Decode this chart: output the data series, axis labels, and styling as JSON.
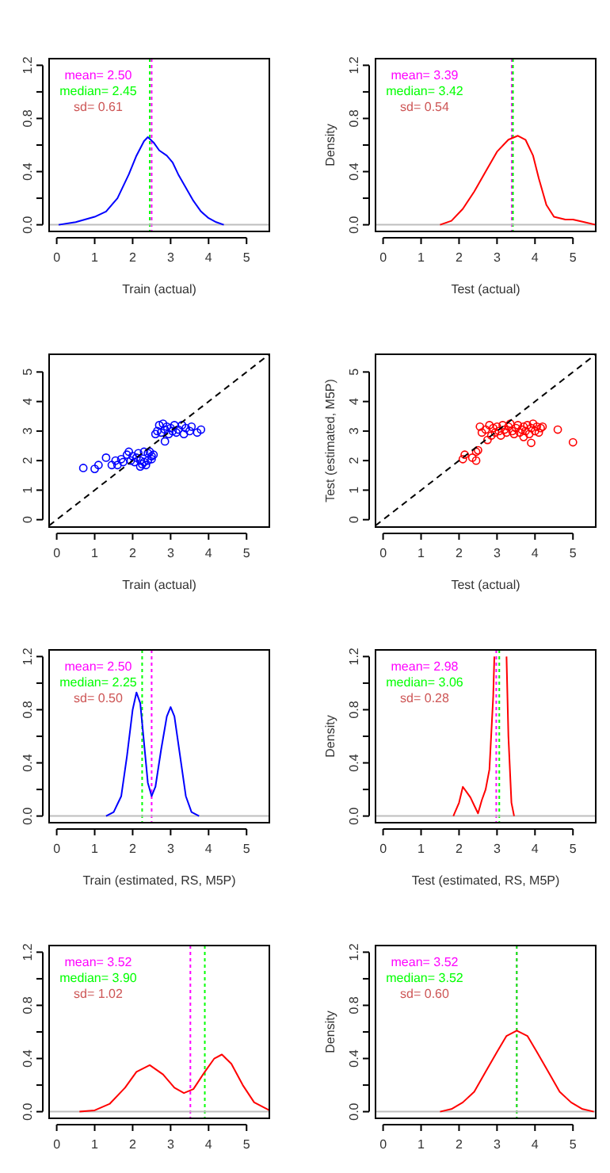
{
  "chart_data": [
    {
      "type": "line",
      "xlabel": "Train (actual)",
      "xlim": [
        -0.2,
        5.6
      ],
      "ylim": [
        -0.05,
        1.25
      ],
      "xticks": [
        0,
        1,
        2,
        3,
        4,
        5
      ],
      "yticks": [
        {
          "value": 0,
          "label": "0.0"
        },
        {
          "value": 0.2,
          "label": null
        },
        0.4,
        {
          "value": 0.6,
          "label": null
        },
        0.8,
        {
          "value": 1.0,
          "label": null
        },
        1.2
      ],
      "annotations": [
        "mean= 2.50",
        "median= 2.45",
        "sd= 0.61"
      ],
      "ref_lines": [
        {
          "axis": "x",
          "value": 2.5,
          "color": "#ff00ff",
          "line_style": "dotted"
        },
        {
          "axis": "x",
          "value": 2.45,
          "color": "#00ff00",
          "line_style": "dotted"
        },
        {
          "axis": "y",
          "value": 0,
          "color": "#bebebe"
        }
      ],
      "series": [
        {
          "color": "#0000ff",
          "x": [
            0.05,
            0.5,
            1,
            1.3,
            1.6,
            1.9,
            2.1,
            2.3,
            2.4,
            2.55,
            2.7,
            2.9,
            3.05,
            3.2,
            3.4,
            3.6,
            3.8,
            4.0,
            4.2,
            4.4
          ],
          "values": [
            0,
            0.02,
            0.06,
            0.1,
            0.2,
            0.38,
            0.52,
            0.63,
            0.66,
            0.62,
            0.56,
            0.52,
            0.47,
            0.38,
            0.28,
            0.18,
            0.1,
            0.05,
            0.02,
            0
          ]
        }
      ]
    },
    {
      "type": "line",
      "xlabel": "Test (actual)",
      "ylabel": "Density",
      "xlim": [
        -0.2,
        5.6
      ],
      "ylim": [
        -0.05,
        1.25
      ],
      "xticks": [
        0,
        1,
        2,
        3,
        4,
        5
      ],
      "yticks": [
        {
          "value": 0,
          "label": "0.0"
        },
        {
          "value": 0.2,
          "label": null
        },
        0.4,
        {
          "value": 0.6,
          "label": null
        },
        0.8,
        {
          "value": 1.0,
          "label": null
        },
        1.2
      ],
      "annotations": [
        "mean= 3.39",
        "median= 3.42",
        "sd= 0.54"
      ],
      "ref_lines": [
        {
          "axis": "x",
          "value": 3.39,
          "color": "#ff00ff",
          "line_style": "dotted"
        },
        {
          "axis": "x",
          "value": 3.42,
          "color": "#00ff00",
          "line_style": "dotted"
        },
        {
          "axis": "y",
          "value": 0,
          "color": "#bebebe"
        }
      ],
      "series": [
        {
          "color": "#ff0000",
          "x": [
            1.5,
            1.8,
            2.1,
            2.4,
            2.7,
            3.0,
            3.3,
            3.55,
            3.75,
            3.95,
            4.1,
            4.3,
            4.5,
            4.8,
            5.0,
            5.3,
            5.6
          ],
          "values": [
            0,
            0.03,
            0.12,
            0.25,
            0.4,
            0.55,
            0.64,
            0.67,
            0.64,
            0.52,
            0.35,
            0.15,
            0.06,
            0.04,
            0.04,
            0.02,
            0
          ]
        }
      ]
    },
    {
      "type": "scatter",
      "xlabel": "Train (actual)",
      "xlim": [
        -0.2,
        5.6
      ],
      "ylim": [
        -0.25,
        5.6
      ],
      "xticks": [
        0,
        1,
        2,
        3,
        4,
        5
      ],
      "yticks": [
        0,
        1,
        2,
        3,
        4,
        5
      ],
      "series": [
        {
          "color": "#0000ff",
          "marker": "circle",
          "x": [
            0.7,
            1.0,
            1.1,
            1.3,
            1.45,
            1.55,
            1.6,
            1.7,
            1.75,
            1.85,
            1.9,
            1.95,
            2.0,
            2.05,
            2.1,
            2.15,
            2.2,
            2.2,
            2.25,
            2.3,
            2.3,
            2.35,
            2.4,
            2.4,
            2.45,
            2.5,
            2.5,
            2.55,
            2.6,
            2.65,
            2.7,
            2.75,
            2.8,
            2.85,
            2.85,
            2.9,
            2.95,
            3.0,
            3.05,
            3.1,
            3.15,
            3.2,
            3.3,
            3.35,
            3.4,
            3.5,
            3.55,
            3.7,
            3.8
          ],
          "values": [
            1.75,
            1.72,
            1.85,
            2.1,
            1.85,
            2.0,
            1.85,
            2.05,
            1.95,
            2.2,
            2.3,
            2.0,
            2.15,
            1.95,
            2.1,
            2.25,
            1.8,
            2.0,
            1.88,
            2.3,
            1.95,
            1.85,
            2.25,
            2.0,
            2.3,
            2.15,
            2.05,
            2.2,
            2.9,
            3.0,
            3.2,
            2.95,
            3.25,
            2.65,
            3.05,
            3.15,
            2.9,
            3.1,
            3.0,
            3.2,
            2.95,
            3.05,
            3.2,
            2.9,
            3.1,
            3.0,
            3.15,
            2.95,
            3.05
          ]
        },
        {
          "type": "line",
          "color": "#000000",
          "line_style": "dashed",
          "x": [
            -0.2,
            5.6
          ],
          "values": [
            -0.2,
            5.6
          ]
        }
      ]
    },
    {
      "type": "scatter",
      "xlabel": "Test (actual)",
      "ylabel": "Test (estimated, M5P)",
      "xlim": [
        -0.2,
        5.6
      ],
      "ylim": [
        -0.25,
        5.6
      ],
      "xticks": [
        0,
        1,
        2,
        3,
        4,
        5
      ],
      "yticks": [
        0,
        1,
        2,
        3,
        4,
        5
      ],
      "series": [
        {
          "color": "#ff0000",
          "marker": "circle",
          "x": [
            2.1,
            2.15,
            2.35,
            2.45,
            2.45,
            2.5,
            2.55,
            2.6,
            2.7,
            2.75,
            2.8,
            2.85,
            2.9,
            2.95,
            3.0,
            3.05,
            3.1,
            3.15,
            3.2,
            3.25,
            3.3,
            3.35,
            3.4,
            3.45,
            3.5,
            3.55,
            3.6,
            3.65,
            3.7,
            3.7,
            3.75,
            3.8,
            3.85,
            3.9,
            3.9,
            3.95,
            4.0,
            4.05,
            4.1,
            4.15,
            4.2,
            4.6,
            5.0
          ],
          "values": [
            2.05,
            2.2,
            2.1,
            2.0,
            2.3,
            2.35,
            3.15,
            2.95,
            3.05,
            2.7,
            3.2,
            2.85,
            3.1,
            2.95,
            3.15,
            3.0,
            2.85,
            3.2,
            3.05,
            2.95,
            3.15,
            3.25,
            3.0,
            2.9,
            3.1,
            3.2,
            2.95,
            3.05,
            3.15,
            2.8,
            3.0,
            3.2,
            2.9,
            3.1,
            2.6,
            3.25,
            3.0,
            3.15,
            2.95,
            3.1,
            3.15,
            3.05,
            2.62
          ]
        },
        {
          "type": "line",
          "color": "#000000",
          "line_style": "dashed",
          "x": [
            -0.2,
            5.6
          ],
          "values": [
            -0.2,
            5.6
          ]
        }
      ]
    },
    {
      "type": "line",
      "xlabel": "Train (estimated, RS, M5P)",
      "xlim": [
        -0.2,
        5.6
      ],
      "ylim": [
        -0.05,
        1.25
      ],
      "xticks": [
        0,
        1,
        2,
        3,
        4,
        5
      ],
      "yticks": [
        {
          "value": 0,
          "label": "0.0"
        },
        {
          "value": 0.2,
          "label": null
        },
        0.4,
        {
          "value": 0.6,
          "label": null
        },
        0.8,
        {
          "value": 1.0,
          "label": null
        },
        1.2
      ],
      "annotations": [
        "mean= 2.50",
        "median= 2.25",
        "sd= 0.50"
      ],
      "ref_lines": [
        {
          "axis": "x",
          "value": 2.5,
          "color": "#ff00ff",
          "line_style": "dotted"
        },
        {
          "axis": "x",
          "value": 2.25,
          "color": "#00ff00",
          "line_style": "dotted"
        },
        {
          "axis": "y",
          "value": 0,
          "color": "#bebebe"
        }
      ],
      "series": [
        {
          "color": "#0000ff",
          "x": [
            1.3,
            1.5,
            1.7,
            1.85,
            2.0,
            2.1,
            2.2,
            2.3,
            2.4,
            2.5,
            2.6,
            2.75,
            2.9,
            3.0,
            3.1,
            3.25,
            3.4,
            3.55,
            3.75
          ],
          "values": [
            0,
            0.03,
            0.15,
            0.45,
            0.8,
            0.93,
            0.85,
            0.55,
            0.25,
            0.15,
            0.22,
            0.5,
            0.75,
            0.82,
            0.75,
            0.45,
            0.15,
            0.03,
            0
          ]
        }
      ]
    },
    {
      "type": "line",
      "xlabel": "Test (estimated, RS, M5P)",
      "ylabel": "Density",
      "xlim": [
        -0.2,
        5.6
      ],
      "ylim": [
        -0.05,
        1.25
      ],
      "xticks": [
        0,
        1,
        2,
        3,
        4,
        5
      ],
      "yticks": [
        {
          "value": 0,
          "label": "0.0"
        },
        {
          "value": 0.2,
          "label": null
        },
        0.4,
        {
          "value": 0.6,
          "label": null
        },
        0.8,
        {
          "value": 1.0,
          "label": null
        },
        1.2
      ],
      "annotations": [
        "mean= 2.98",
        "median= 3.06",
        "sd= 0.28"
      ],
      "ref_lines": [
        {
          "axis": "x",
          "value": 2.98,
          "color": "#ff00ff",
          "line_style": "dotted"
        },
        {
          "axis": "x",
          "value": 3.06,
          "color": "#00ff00",
          "line_style": "dotted"
        },
        {
          "axis": "y",
          "value": 0,
          "color": "#bebebe"
        }
      ],
      "series": [
        {
          "color": "#ff0000",
          "x": [
            1.85,
            2.0,
            2.1,
            2.2,
            2.3,
            2.4,
            2.5,
            2.6,
            2.7,
            2.8,
            2.9,
            2.93,
            3.1,
            3.25,
            3.3,
            3.38,
            3.45
          ],
          "values": [
            0,
            0.1,
            0.22,
            0.18,
            0.14,
            0.08,
            0.02,
            0.12,
            0.2,
            0.35,
            0.9,
            1.2,
            null,
            1.2,
            0.6,
            0.1,
            0
          ]
        }
      ]
    },
    {
      "type": "line",
      "xlim": [
        -0.2,
        5.6
      ],
      "ylim": [
        -0.05,
        1.25
      ],
      "xticks": [
        0,
        1,
        2,
        3,
        4,
        5
      ],
      "yticks": [
        {
          "value": 0,
          "label": "0.0"
        },
        {
          "value": 0.2,
          "label": null
        },
        0.4,
        {
          "value": 0.6,
          "label": null
        },
        0.8,
        {
          "value": 1.0,
          "label": null
        },
        1.2
      ],
      "annotations": [
        "mean= 3.52",
        "median= 3.90",
        "sd= 1.02"
      ],
      "ref_lines": [
        {
          "axis": "x",
          "value": 3.52,
          "color": "#ff00ff",
          "line_style": "dotted"
        },
        {
          "axis": "x",
          "value": 3.9,
          "color": "#00ff00",
          "line_style": "dotted"
        },
        {
          "axis": "y",
          "value": 0,
          "color": "#bebebe"
        }
      ],
      "series": [
        {
          "color": "#ff0000",
          "x": [
            0.6,
            1.0,
            1.4,
            1.8,
            2.1,
            2.45,
            2.8,
            3.1,
            3.35,
            3.6,
            3.9,
            4.15,
            4.35,
            4.6,
            4.9,
            5.2,
            5.6
          ],
          "values": [
            0,
            0.01,
            0.06,
            0.18,
            0.3,
            0.35,
            0.28,
            0.18,
            0.14,
            0.17,
            0.3,
            0.4,
            0.43,
            0.36,
            0.2,
            0.07,
            0.01
          ]
        }
      ]
    },
    {
      "type": "line",
      "ylabel": "Density",
      "xlim": [
        -0.2,
        5.6
      ],
      "ylim": [
        -0.05,
        1.25
      ],
      "xticks": [
        0,
        1,
        2,
        3,
        4,
        5
      ],
      "yticks": [
        {
          "value": 0,
          "label": "0.0"
        },
        {
          "value": 0.2,
          "label": null
        },
        0.4,
        {
          "value": 0.6,
          "label": null
        },
        0.8,
        {
          "value": 1.0,
          "label": null
        },
        1.2
      ],
      "annotations": [
        "mean= 3.52",
        "median= 3.52",
        "sd= 0.60"
      ],
      "ref_lines": [
        {
          "axis": "x",
          "value": 3.52,
          "color": "#ff00ff",
          "line_style": "dotted"
        },
        {
          "axis": "x",
          "value": 3.52,
          "color": "#00ff00",
          "line_style": "dotted"
        },
        {
          "axis": "y",
          "value": 0,
          "color": "#bebebe"
        }
      ],
      "series": [
        {
          "color": "#ff0000",
          "x": [
            1.5,
            1.8,
            2.1,
            2.4,
            2.7,
            3.0,
            3.25,
            3.52,
            3.8,
            4.05,
            4.35,
            4.65,
            4.95,
            5.25,
            5.55
          ],
          "values": [
            0,
            0.02,
            0.07,
            0.15,
            0.3,
            0.45,
            0.57,
            0.61,
            0.57,
            0.45,
            0.3,
            0.15,
            0.07,
            0.02,
            0
          ]
        }
      ]
    }
  ]
}
